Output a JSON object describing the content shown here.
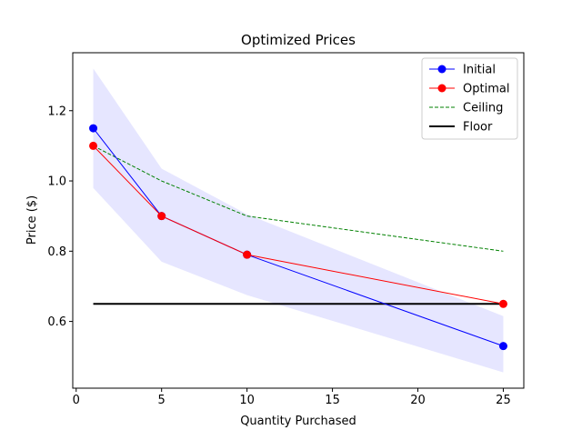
{
  "chart_data": {
    "type": "line",
    "title": "Optimized Prices",
    "xlabel": "Quantity Purchased",
    "ylabel": "Price ($)",
    "xlim": [
      -0.2,
      26.2
    ],
    "ylim": [
      0.41,
      1.365
    ],
    "xticks": [
      0,
      5,
      10,
      15,
      20,
      25
    ],
    "yticks": [
      0.6,
      0.8,
      1.0,
      1.2
    ],
    "xtick_labels": [
      "0",
      "5",
      "10",
      "15",
      "20",
      "25"
    ],
    "ytick_labels": [
      "0.6",
      "0.8",
      "1.0",
      "1.2"
    ],
    "grid": false,
    "legend_position": "top-right",
    "band": {
      "x": [
        1,
        5,
        10,
        25
      ],
      "upper": [
        1.32,
        1.035,
        0.905,
        0.615
      ],
      "lower": [
        0.98,
        0.77,
        0.675,
        0.455
      ],
      "color": "#e6e6ff"
    },
    "series": [
      {
        "name": "Initial",
        "x": [
          1,
          5,
          10,
          25
        ],
        "y": [
          1.15,
          0.9,
          0.79,
          0.53
        ],
        "color": "#0000ff",
        "style": "solid",
        "marker": true
      },
      {
        "name": "Optimal",
        "x": [
          1,
          5,
          10,
          25
        ],
        "y": [
          1.1,
          0.9,
          0.79,
          0.65
        ],
        "color": "#ff0000",
        "style": "solid",
        "marker": true
      },
      {
        "name": "Ceiling",
        "x": [
          1,
          5,
          10,
          25
        ],
        "y": [
          1.1,
          1.0,
          0.9,
          0.8
        ],
        "color": "#008000",
        "style": "dashed",
        "marker": false
      },
      {
        "name": "Floor",
        "x": [
          1,
          25
        ],
        "y": [
          0.65,
          0.65
        ],
        "color": "#000000",
        "style": "solid",
        "marker": false,
        "thick": true
      }
    ]
  }
}
